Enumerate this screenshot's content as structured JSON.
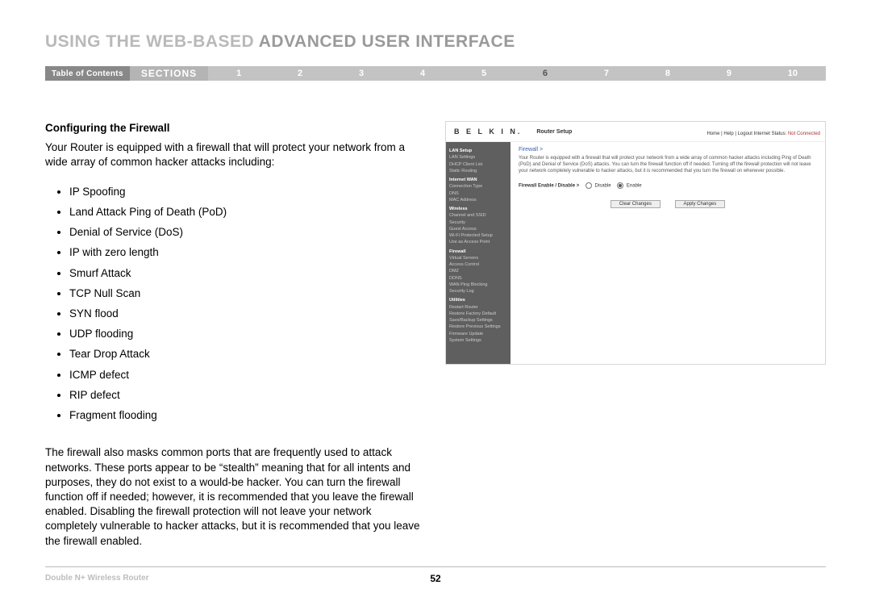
{
  "title_prefix": "USING THE WEB-BASED",
  "title_suffix": " ADVANCED USER INTERFACE",
  "nav": {
    "toc": "Table of Contents",
    "sections": "SECTIONS",
    "numbers": [
      "1",
      "2",
      "3",
      "4",
      "5",
      "6",
      "7",
      "8",
      "9",
      "10"
    ],
    "active_index": 5
  },
  "content": {
    "subhead": "Configuring the Firewall",
    "intro": "Your Router is equipped with a firewall that will protect your network from a wide array of common hacker attacks including:",
    "attacks": [
      "IP Spoofing",
      "Land Attack Ping of Death (PoD)",
      "Denial of Service (DoS)",
      "IP with zero length",
      "Smurf Attack",
      "TCP Null Scan",
      "SYN flood",
      "UDP flooding",
      "Tear Drop Attack",
      "ICMP defect",
      "RIP defect",
      "Fragment flooding"
    ],
    "closing": "The firewall also masks common ports that are frequently used to attack networks. These ports appear to be “stealth” meaning that for all intents and purposes, they do not exist to a would-be hacker. You can turn the firewall function off if needed; however, it is recommended that you leave the firewall enabled. Disabling the firewall protection will not leave your network completely vulnerable to hacker attacks, but it is recommended that you leave the firewall enabled."
  },
  "router": {
    "logo": "B E L K I N.",
    "title": "Router Setup",
    "status_prefix": "Home | Help | Logout    Internet Status: ",
    "status_value": "Not Connected",
    "crumb": "Firewall >",
    "desc": "Your Router is equipped with a firewall that will protect your network from a wide array of common hacker attacks including Ping of Death (PoD) and Denial of Service (DoS) attacks. You can turn the firewall function off if needed. Turning off the firewall protection will not leave your network completely vulnerable to hacker attacks, but it is recommended that you turn the firewall on whenever possible.",
    "option_label": "Firewall Enable / Disable >",
    "opt_disable": "Disable",
    "opt_enable": "Enable",
    "btn_clear": "Clear Changes",
    "btn_apply": "Apply Changes",
    "side": {
      "groups": [
        {
          "head": "LAN Setup",
          "items": [
            "LAN Settings",
            "DHCP Client List",
            "Static Routing"
          ]
        },
        {
          "head": "Internet WAN",
          "items": [
            "Connection Type",
            "DNS",
            "MAC Address"
          ]
        },
        {
          "head": "Wireless",
          "items": [
            "Channel and SSID",
            "Security",
            "Guest Access",
            "Wi-Fi Protected Setup",
            "Use as Access Point"
          ]
        },
        {
          "head": "Firewall",
          "items": [
            "Virtual Servers",
            "Access Control",
            "DMZ",
            "DDNS",
            "WAN Ping Blocking",
            "Security Log"
          ],
          "current": true
        },
        {
          "head": "Utilities",
          "items": [
            "Restart Router",
            "Restore Factory Default",
            "Save/Backup Settings",
            "Restore Previous Settings",
            "Firmware Update",
            "System Settings"
          ]
        }
      ]
    }
  },
  "footer": {
    "product": "Double N+ Wireless Router",
    "page": "52"
  }
}
